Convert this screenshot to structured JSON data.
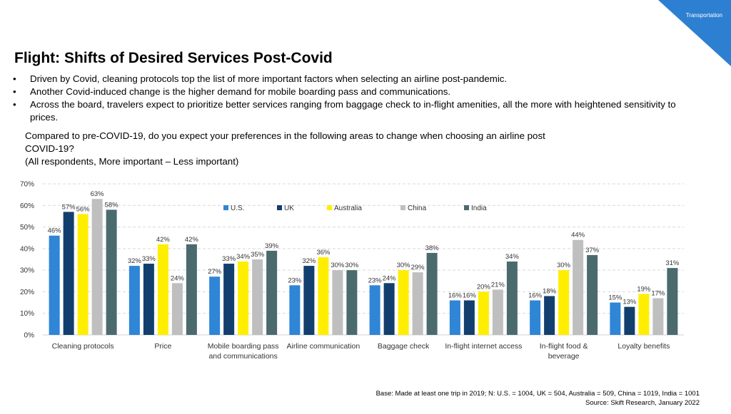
{
  "header": {
    "corner_label": "Transportation",
    "title": "Flight: Shifts of Desired Services Post-Covid",
    "bullets": [
      "Driven by Covid, cleaning protocols top the list of more important factors when selecting an airline post-pandemic.",
      "Another Covid-induced change is the higher demand for mobile boarding pass and communications.",
      "Across the board, travelers expect to prioritize better services ranging from baggage check to in-flight amenities, all the more with heightened sensitivity to prices."
    ],
    "question_line1": "Compared to pre-COVID-19, do you expect your preferences in the following areas to change when choosing an airline post",
    "question_line2": "COVID-19?",
    "question_line3": "(All respondents, More important – Less important)"
  },
  "footer": {
    "base": "Base: Made at least one trip in 2019; N: U.S. = 1004, UK = 504, Australia = 509, China = 1019, India = 1001",
    "source": "Source: Skift Research, January 2022"
  },
  "colors": {
    "corner": "#2d7fd1",
    "U.S.": "#2f85d6",
    "UK": "#123f6e",
    "Australia": "#ffee00",
    "China": "#bfbfbf",
    "India": "#4a6a6e"
  },
  "chart_data": {
    "type": "bar",
    "categories": [
      "Cleaning protocols",
      "Price",
      "Mobile boarding pass and communications",
      "Airline communication",
      "Baggage check",
      "In-flight internet access",
      "In-flight food & beverage",
      "Loyalty benefits"
    ],
    "category_lines": [
      [
        "Cleaning protocols"
      ],
      [
        "Price"
      ],
      [
        "Mobile boarding pass",
        "and communications"
      ],
      [
        "Airline communication"
      ],
      [
        "Baggage check"
      ],
      [
        "In-flight internet access"
      ],
      [
        "In-flight food &",
        "beverage"
      ],
      [
        "Loyalty benefits"
      ]
    ],
    "series": [
      {
        "name": "U.S.",
        "values": [
          46,
          32,
          27,
          23,
          23,
          16,
          16,
          15
        ]
      },
      {
        "name": "UK",
        "values": [
          57,
          33,
          33,
          32,
          24,
          16,
          18,
          13
        ]
      },
      {
        "name": "Australia",
        "values": [
          56,
          42,
          34,
          36,
          30,
          20,
          30,
          19
        ]
      },
      {
        "name": "China",
        "values": [
          63,
          24,
          35,
          30,
          29,
          21,
          44,
          17
        ]
      },
      {
        "name": "India",
        "values": [
          58,
          42,
          39,
          30,
          38,
          34,
          37,
          31
        ]
      }
    ],
    "ylim": [
      0,
      70
    ],
    "yticks": [
      "0%",
      "10%",
      "20%",
      "30%",
      "40%",
      "50%",
      "60%",
      "70%"
    ],
    "value_suffix": "%",
    "grid": true,
    "legend_position": "top"
  }
}
